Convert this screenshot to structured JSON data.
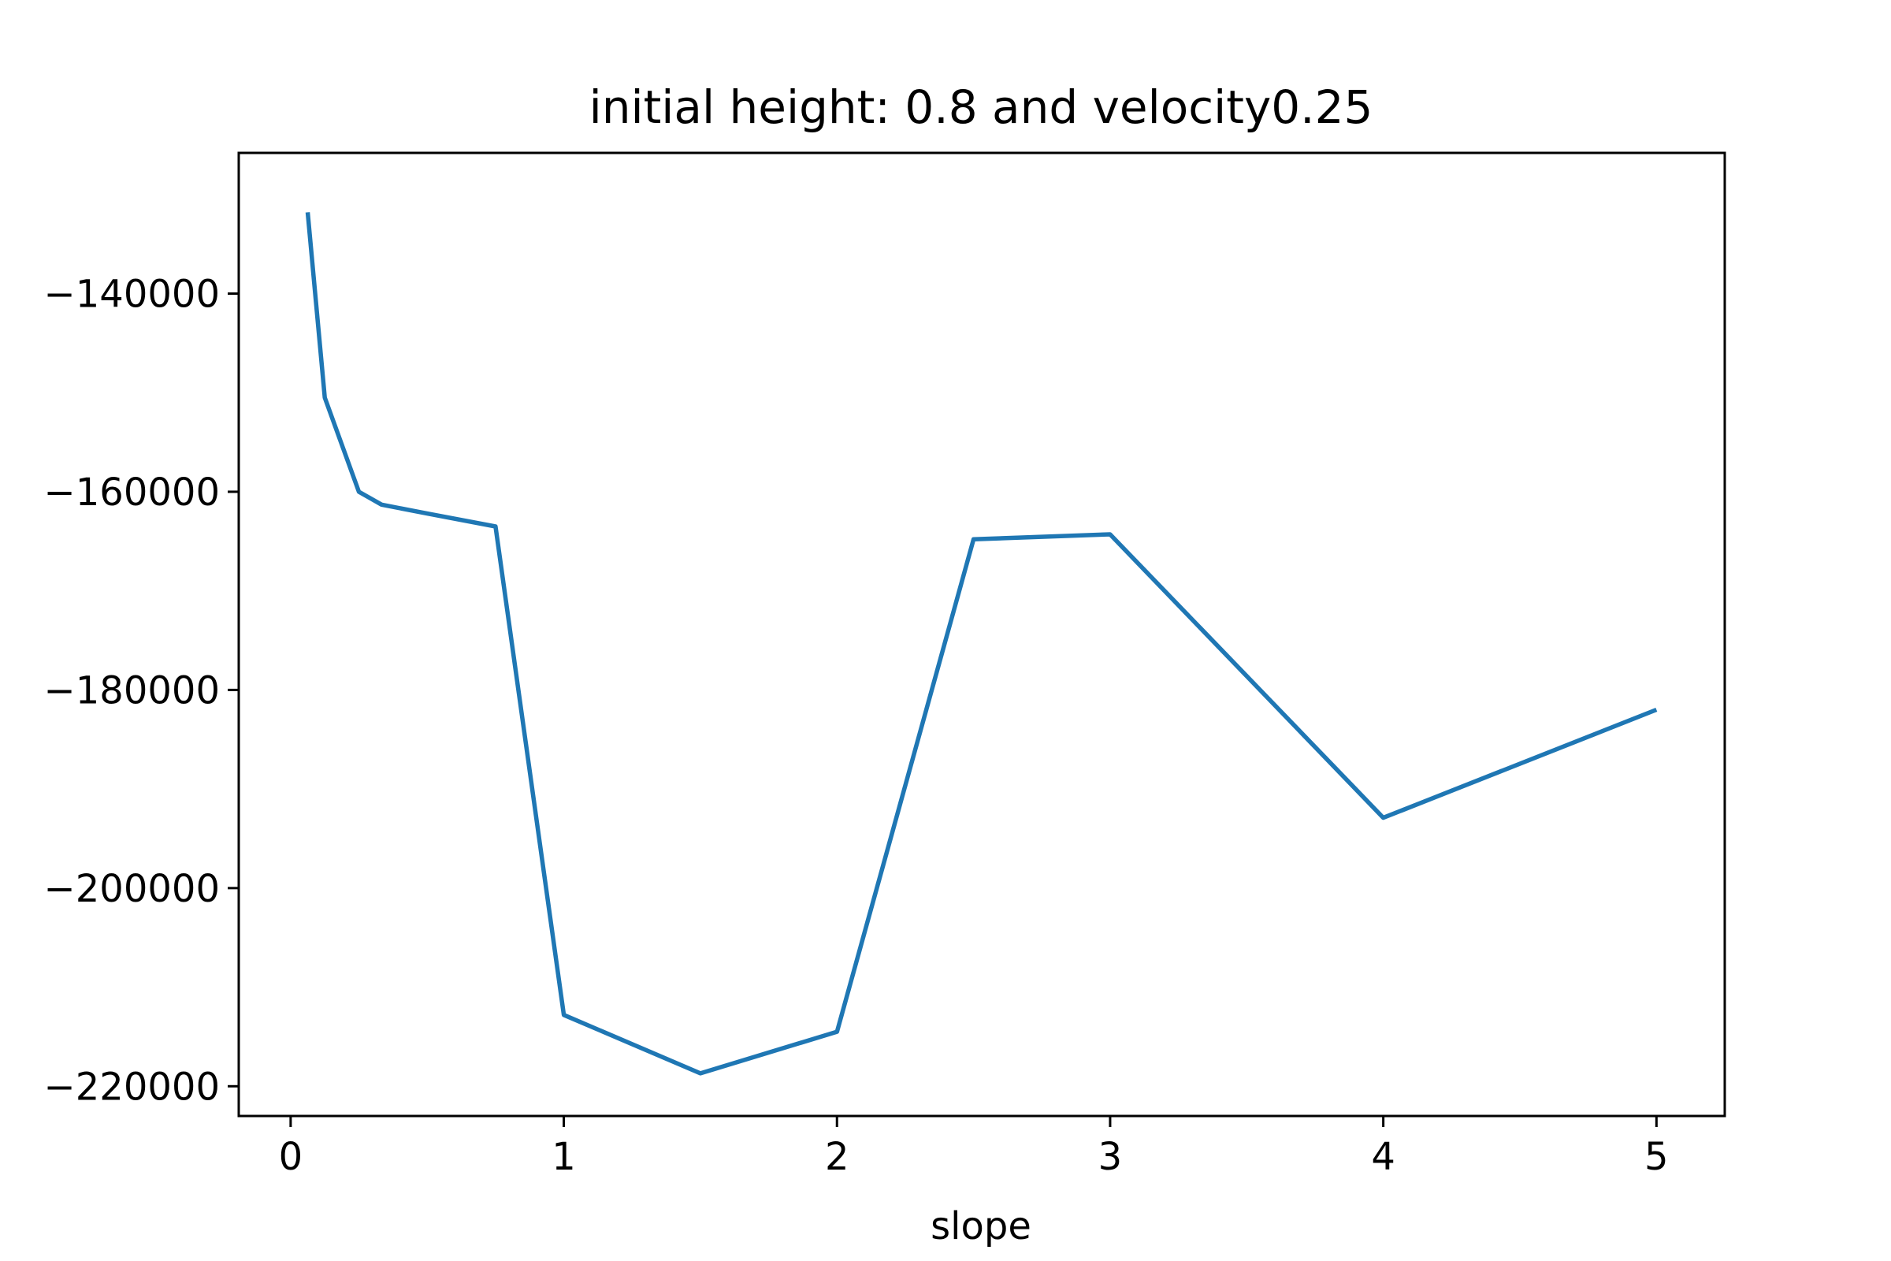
{
  "chart_data": {
    "type": "line",
    "title": "initial height: 0.8 and velocity0.25",
    "xlabel": "slope",
    "ylabel": "",
    "xlim": [
      -0.19,
      5.25
    ],
    "ylim": [
      -223000,
      -125800
    ],
    "grid": false,
    "x_ticks": [
      0,
      1,
      2,
      3,
      4,
      5
    ],
    "x_tick_labels": [
      "0",
      "1",
      "2",
      "3",
      "4",
      "5"
    ],
    "y_ticks": [
      -140000,
      -160000,
      -180000,
      -200000,
      -220000
    ],
    "y_tick_labels": [
      "−140000",
      "−160000",
      "−180000",
      "−200000",
      "−220000"
    ],
    "series": [
      {
        "color": "#1f77b4",
        "x": [
          0.0625,
          0.125,
          0.25,
          0.333,
          0.5,
          0.75,
          1.0,
          1.5,
          2.0,
          2.5,
          3.0,
          4.0,
          5.0
        ],
        "y": [
          -131800,
          -150500,
          -160000,
          -161300,
          -162200,
          -163500,
          -212800,
          -218700,
          -214500,
          -164800,
          -164300,
          -192900,
          -182000
        ]
      }
    ]
  }
}
